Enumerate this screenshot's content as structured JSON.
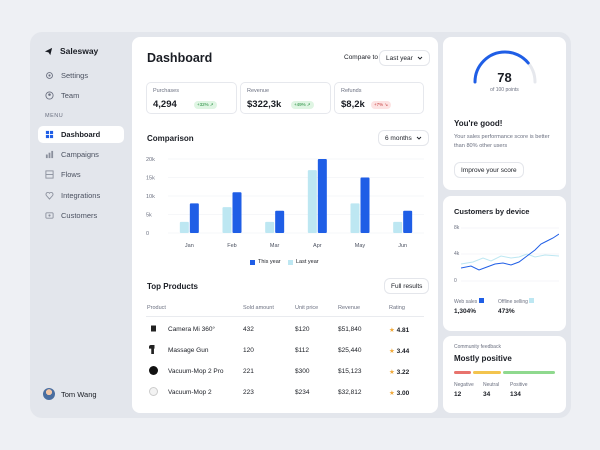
{
  "brand": {
    "name": "Salesway"
  },
  "nav": {
    "items": [
      {
        "label": "Settings",
        "icon": "gear-icon"
      },
      {
        "label": "Team",
        "icon": "team-icon"
      }
    ],
    "menu_caption": "MENU",
    "menu_items": [
      {
        "label": "Dashboard",
        "icon": "grid-icon",
        "active": true
      },
      {
        "label": "Campaigns",
        "icon": "campaign-icon"
      },
      {
        "label": "Flows",
        "icon": "flows-icon"
      },
      {
        "label": "Integrations",
        "icon": "integrations-icon"
      },
      {
        "label": "Customers",
        "icon": "customers-icon"
      }
    ],
    "user": "Tom Wang"
  },
  "header": {
    "title": "Dashboard",
    "compare_label": "Compare to",
    "compare_value": "Last year"
  },
  "stats": [
    {
      "label": "Purchases",
      "value": "4,294",
      "badge": "+32% ↗",
      "trend": "up"
    },
    {
      "label": "Revenue",
      "value": "$322,3k",
      "badge": "+49% ↗",
      "trend": "up"
    },
    {
      "label": "Refunds",
      "value": "$8,2k",
      "badge": "+7% ↘",
      "trend": "down"
    }
  ],
  "comparison": {
    "title": "Comparison",
    "period": "6 months",
    "legend_this": "This year",
    "legend_last": "Last year",
    "colors": {
      "this": "#1f5ee6",
      "last": "#bde7f2"
    }
  },
  "chart_data": {
    "type": "bar",
    "categories": [
      "Jan",
      "Feb",
      "Mar",
      "Apr",
      "May",
      "Jun"
    ],
    "series": [
      {
        "name": "This year",
        "values": [
          8000,
          11000,
          6000,
          20000,
          15000,
          6000
        ]
      },
      {
        "name": "Last year",
        "values": [
          3000,
          7000,
          3000,
          17000,
          8000,
          3000
        ]
      }
    ],
    "yticks": [
      "0",
      "5k",
      "10k",
      "15k",
      "20k"
    ],
    "ylim": [
      0,
      20000
    ]
  },
  "products": {
    "title": "Top Products",
    "full_results": "Full results",
    "columns": [
      "Product",
      "Sold amount",
      "Unit price",
      "Revenue",
      "Rating"
    ],
    "rows": [
      {
        "name": "Camera Mi 360°",
        "sold": "432",
        "price": "$120",
        "revenue": "$51,840",
        "rating": "4.81"
      },
      {
        "name": "Massage Gun",
        "sold": "120",
        "price": "$112",
        "revenue": "$25,440",
        "rating": "3.44"
      },
      {
        "name": "Vacuum-Mop 2 Pro",
        "sold": "221",
        "price": "$300",
        "revenue": "$15,123",
        "rating": "3.22"
      },
      {
        "name": "Vacuum-Mop 2",
        "sold": "223",
        "price": "$234",
        "revenue": "$32,812",
        "rating": "3.00"
      }
    ]
  },
  "score": {
    "value": "78",
    "sub": "of 100 points",
    "score_fraction": 0.78,
    "headline": "You're good!",
    "text": "Your sales performance score is better than 80% other users",
    "button": "Improve your score"
  },
  "devices": {
    "title": "Customers by device",
    "yticks": [
      "8k",
      "4k",
      "0"
    ],
    "web_label": "Web sales",
    "web_value": "1,304%",
    "offline_label": "Offline selling",
    "offline_value": "473%"
  },
  "feedback": {
    "caption": "Community feedback",
    "title": "Mostly positive",
    "negative_label": "Negative",
    "negative_value": "12",
    "neutral_label": "Neutral",
    "neutral_value": "34",
    "positive_label": "Positive",
    "positive_value": "134"
  }
}
